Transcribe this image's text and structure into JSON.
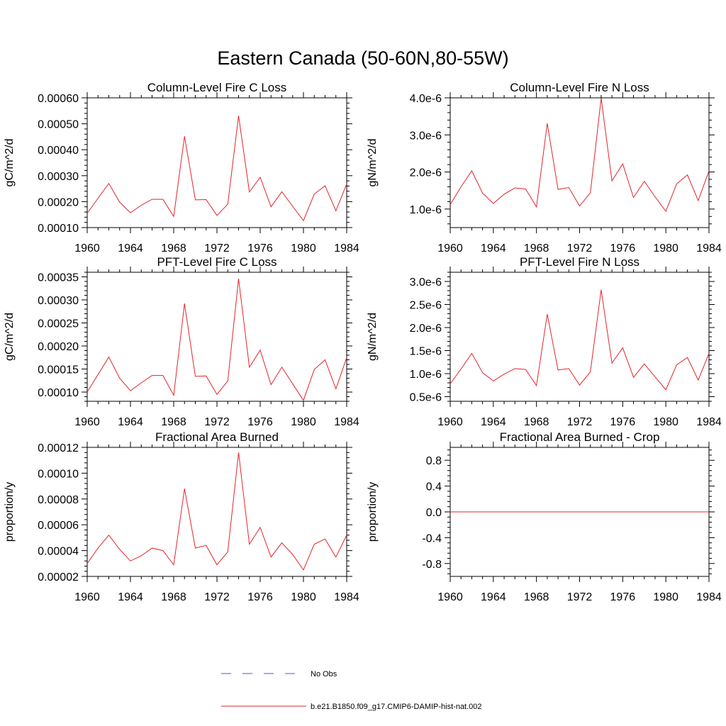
{
  "figure": {
    "title": "Eastern Canada (50-60N,80-55W)"
  },
  "legend": {
    "entries": [
      {
        "label": "No Obs",
        "color": "#4a5fc1",
        "dash": "dashed"
      },
      {
        "label": "b.e21.B1850.f09_g17.CMIP6-DAMIP-hist-nat.002",
        "color": "#e3242b",
        "dash": "solid"
      }
    ]
  },
  "chart_data": [
    {
      "type": "line",
      "title": "Column-Level Fire C Loss",
      "ylabel": "gC/m^2/d",
      "xlabel": "",
      "xlim": [
        1960,
        1984
      ],
      "ylim": [
        0.0001,
        0.0006
      ],
      "xticks": [
        1960,
        1964,
        1968,
        1972,
        1976,
        1980,
        1984
      ],
      "yticks": [
        0.0001,
        0.0002,
        0.0003,
        0.0004,
        0.0005,
        0.0006
      ],
      "ytick_labels": [
        "0.00010",
        "0.00020",
        "0.00030",
        "0.00040",
        "0.00050",
        "0.00060"
      ],
      "x": [
        1960,
        1961,
        1962,
        1963,
        1964,
        1965,
        1966,
        1967,
        1968,
        1969,
        1970,
        1971,
        1972,
        1973,
        1974,
        1975,
        1976,
        1977,
        1978,
        1979,
        1980,
        1981,
        1982,
        1983,
        1984
      ],
      "series": [
        {
          "values": [
            0.000155,
            0.000213,
            0.00027,
            0.000198,
            0.000157,
            0.000186,
            0.000209,
            0.000209,
            0.000143,
            0.000452,
            0.000207,
            0.000208,
            0.000147,
            0.00019,
            0.000531,
            0.000237,
            0.000294,
            0.00018,
            0.000238,
            0.000182,
            0.000127,
            0.000229,
            0.000261,
            0.000165,
            0.000268
          ],
          "color": "#e3242b"
        }
      ]
    },
    {
      "type": "line",
      "title": "Column-Level Fire N Loss",
      "ylabel": "gN/m^2/d",
      "xlabel": "",
      "xlim": [
        1960,
        1984
      ],
      "ylim": [
        5e-07,
        4e-06
      ],
      "xticks": [
        1960,
        1964,
        1968,
        1972,
        1976,
        1980,
        1984
      ],
      "yticks": [
        1e-06,
        2e-06,
        3e-06,
        4e-06
      ],
      "ytick_labels": [
        "1.0e-6",
        "2.0e-6",
        "3.0e-6",
        "4.0e-6"
      ],
      "x": [
        1960,
        1961,
        1962,
        1963,
        1964,
        1965,
        1966,
        1967,
        1968,
        1969,
        1970,
        1971,
        1972,
        1973,
        1974,
        1975,
        1976,
        1977,
        1978,
        1979,
        1980,
        1981,
        1982,
        1983,
        1984
      ],
      "series": [
        {
          "values": [
            1.12e-06,
            1.6e-06,
            2.03e-06,
            1.43e-06,
            1.15e-06,
            1.4e-06,
            1.57e-06,
            1.54e-06,
            1.06e-06,
            3.31e-06,
            1.53e-06,
            1.58e-06,
            1.08e-06,
            1.44e-06,
            3.99e-06,
            1.76e-06,
            2.22e-06,
            1.31e-06,
            1.75e-06,
            1.33e-06,
            9.4e-07,
            1.68e-06,
            1.92e-06,
            1.23e-06,
            2.03e-06
          ],
          "color": "#e3242b"
        }
      ]
    },
    {
      "type": "line",
      "title": "PFT-Level Fire C Loss",
      "ylabel": "gC/m^2/d",
      "xlabel": "",
      "xlim": [
        1960,
        1984
      ],
      "ylim": [
        8e-05,
        0.00036
      ],
      "xticks": [
        1960,
        1964,
        1968,
        1972,
        1976,
        1980,
        1984
      ],
      "yticks": [
        0.0001,
        0.00015,
        0.0002,
        0.00025,
        0.0003,
        0.00035
      ],
      "ytick_labels": [
        "0.00010",
        "0.00015",
        "0.00020",
        "0.00025",
        "0.00030",
        "0.00035"
      ],
      "x": [
        1960,
        1961,
        1962,
        1963,
        1964,
        1965,
        1966,
        1967,
        1968,
        1969,
        1970,
        1971,
        1972,
        1973,
        1974,
        1975,
        1976,
        1977,
        1978,
        1979,
        1980,
        1981,
        1982,
        1983,
        1984
      ],
      "series": [
        {
          "values": [
            0.0001,
            0.000138,
            0.000176,
            0.00013,
            0.000103,
            0.00012,
            0.000136,
            0.000136,
            9.3e-05,
            0.000292,
            0.000134,
            0.000135,
            9.5e-05,
            0.000124,
            0.000346,
            0.000154,
            0.000191,
            0.000116,
            0.000154,
            0.000118,
            8.2e-05,
            0.000149,
            0.00017,
            0.000107,
            0.000175
          ],
          "color": "#e3242b"
        }
      ]
    },
    {
      "type": "line",
      "title": "PFT-Level Fire N Loss",
      "ylabel": "gN/m^2/d",
      "xlabel": "",
      "xlim": [
        1960,
        1984
      ],
      "ylim": [
        4e-07,
        3.2e-06
      ],
      "xticks": [
        1960,
        1964,
        1968,
        1972,
        1976,
        1980,
        1984
      ],
      "yticks": [
        5e-07,
        1e-06,
        1.5e-06,
        2e-06,
        2.5e-06,
        3e-06
      ],
      "ytick_labels": [
        "0.5e-6",
        "1.0e-6",
        "1.5e-6",
        "2.0e-6",
        "2.5e-6",
        "3.0e-6"
      ],
      "x": [
        1960,
        1961,
        1962,
        1963,
        1964,
        1965,
        1966,
        1967,
        1968,
        1969,
        1970,
        1971,
        1972,
        1973,
        1974,
        1975,
        1976,
        1977,
        1978,
        1979,
        1980,
        1981,
        1982,
        1983,
        1984
      ],
      "series": [
        {
          "values": [
            7.8e-07,
            1.1e-06,
            1.44e-06,
            1.02e-06,
            8.4e-07,
            9.9e-07,
            1.11e-06,
            1.09e-06,
            7.4e-07,
            2.29e-06,
            1.08e-06,
            1.11e-06,
            7.5e-07,
            1.04e-06,
            2.82e-06,
            1.23e-06,
            1.56e-06,
            9.2e-07,
            1.21e-06,
            9.3e-07,
            6.5e-07,
            1.19e-06,
            1.35e-06,
            8.6e-07,
            1.44e-06
          ],
          "color": "#e3242b"
        }
      ]
    },
    {
      "type": "line",
      "title": "Fractional Area Burned",
      "ylabel": "proportion/y",
      "xlabel": "",
      "xlim": [
        1960,
        1984
      ],
      "ylim": [
        2e-05,
        0.00012
      ],
      "xticks": [
        1960,
        1964,
        1968,
        1972,
        1976,
        1980,
        1984
      ],
      "yticks": [
        2e-05,
        4e-05,
        6e-05,
        8e-05,
        0.0001,
        0.00012
      ],
      "ytick_labels": [
        "0.00002",
        "0.00004",
        "0.00006",
        "0.00008",
        "0.00010",
        "0.00012"
      ],
      "x": [
        1960,
        1961,
        1962,
        1963,
        1964,
        1965,
        1966,
        1967,
        1968,
        1969,
        1970,
        1971,
        1972,
        1973,
        1974,
        1975,
        1976,
        1977,
        1978,
        1979,
        1980,
        1981,
        1982,
        1983,
        1984
      ],
      "series": [
        {
          "values": [
            3e-05,
            4.2e-05,
            5.2e-05,
            4.1e-05,
            3.2e-05,
            3.6e-05,
            4.2e-05,
            4e-05,
            2.9e-05,
            8.8e-05,
            4.2e-05,
            4.4e-05,
            2.9e-05,
            3.9e-05,
            0.000116,
            4.5e-05,
            5.8e-05,
            3.5e-05,
            4.6e-05,
            3.7e-05,
            2.5e-05,
            4.5e-05,
            4.9e-05,
            3.5e-05,
            5.2e-05
          ],
          "color": "#e3242b"
        }
      ]
    },
    {
      "type": "line",
      "title": "Fractional Area Burned - Crop",
      "ylabel": "proportion/y",
      "xlabel": "",
      "xlim": [
        1960,
        1984
      ],
      "ylim": [
        -1.0,
        1.0
      ],
      "xticks": [
        1960,
        1964,
        1968,
        1972,
        1976,
        1980,
        1984
      ],
      "yticks": [
        -0.8,
        -0.4,
        0.0,
        0.4,
        0.8
      ],
      "ytick_labels": [
        "-0.8",
        "-0.4",
        "0.0",
        "0.4",
        "0.8"
      ],
      "x": [
        1960,
        1961,
        1962,
        1963,
        1964,
        1965,
        1966,
        1967,
        1968,
        1969,
        1970,
        1971,
        1972,
        1973,
        1974,
        1975,
        1976,
        1977,
        1978,
        1979,
        1980,
        1981,
        1982,
        1983,
        1984
      ],
      "series": [
        {
          "values": [
            0,
            0,
            0,
            0,
            0,
            0,
            0,
            0,
            0,
            0,
            0,
            0,
            0,
            0,
            0,
            0,
            0,
            0,
            0,
            0,
            0,
            0,
            0,
            0,
            0
          ],
          "color": "#e3242b"
        }
      ]
    }
  ]
}
